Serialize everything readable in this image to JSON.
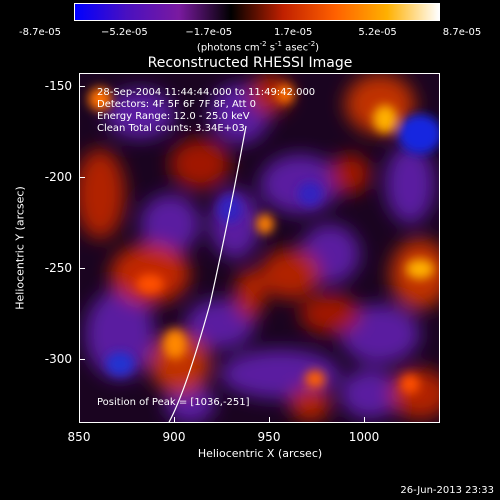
{
  "colorbar": {
    "tick_labels": [
      "-8.7e-05",
      "−5.2e-05",
      "−1.7e-05",
      "1.7e-05",
      "5.2e-05",
      "8.7e-05"
    ],
    "unit_label": {
      "main": "(photons cm",
      "exp1": "-2",
      "mid": " s",
      "exp2": "-1",
      "mid2": " asec",
      "exp3": "-2",
      "end": ")"
    },
    "colors": [
      "#0000ff",
      "#4a10c0",
      "#7a1aa0",
      "#000000",
      "#c02000",
      "#ff6000",
      "#ffb000",
      "#ffffff"
    ]
  },
  "plot": {
    "title": "Reconstructed RHESSI Image",
    "info_lines": [
      "28-Sep-2004 11:44:44.000 to 11:49:42.000",
      "Detectors: 4F 5F 6F 7F 8F, Att 0",
      "Energy Range: 12.0 - 25.0 keV",
      "Clean     Total counts: 3.34E+03"
    ],
    "peak_label": "Position of Peak = [1036,-251]",
    "x_axis": {
      "label": "Heliocentric X (arcsec)",
      "ticks": [
        "850",
        "900",
        "950",
        "1000"
      ],
      "range": [
        850,
        1040
      ]
    },
    "y_axis": {
      "label": "Heliocentric Y (arcsec)",
      "ticks": [
        "-150",
        "-200",
        "-250",
        "-300"
      ],
      "range": [
        -335,
        -143
      ]
    }
  },
  "timestamp": "26-Jun-2013 23:33"
}
